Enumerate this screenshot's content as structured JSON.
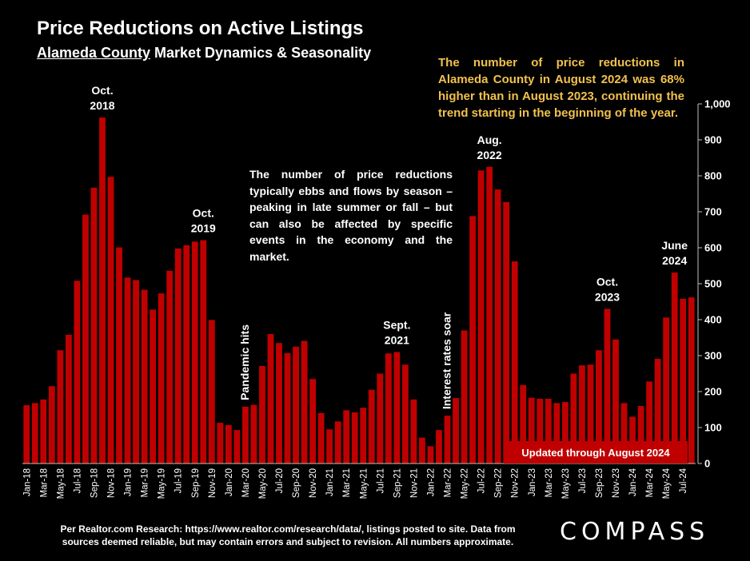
{
  "header": {
    "title": "Price Reductions on Active Listings",
    "subtitle_underlined": "Alameda County",
    "subtitle_rest": " Market Dynamics & Seasonality"
  },
  "notes": {
    "top": "The number of price reductions in Alameda County in August 2024 was 68% higher than in August 2023, continuing the trend starting in the beginning of the year.",
    "middle": "The number of price reductions typically ebbs and flows by season – peaking in late summer or fall – but can also be affected by specific events in the economy and the market."
  },
  "footer": {
    "source": "Per Realtor.com Research:  https://www.realtor.com/research/data/, listings posted to site. Data from sources deemed reliable, but may contain errors and subject to revision. All numbers approximate.",
    "logo": "COMPASS"
  },
  "colors": {
    "background": "#000000",
    "bar": "#c00000",
    "annotation_note": "#f2c14e",
    "text": "#ffffff"
  },
  "chart_data": {
    "type": "bar",
    "ylim": [
      0,
      1000
    ],
    "y_ticks": [
      "0",
      "100",
      "200",
      "300",
      "400",
      "500",
      "600",
      "700",
      "800",
      "900",
      "1,000"
    ],
    "y_axis_side": "right",
    "grid": false,
    "x_tick_labels": [
      "Jan-18",
      "Mar-18",
      "May-18",
      "Jul-18",
      "Sep-18",
      "Nov-18",
      "Jan-19",
      "Mar-19",
      "May-19",
      "Jul-19",
      "Sep-19",
      "Nov-19",
      "Jan-20",
      "Mar-20",
      "May-20",
      "Jul-20",
      "Sep-20",
      "Nov-20",
      "Jan-21",
      "Mar-21",
      "May-21",
      "Jul-21",
      "Sep-21",
      "Nov-21",
      "Jan-22",
      "Mar-22",
      "May-22",
      "Jul-22",
      "Sep-22",
      "Nov-22",
      "Jan-23",
      "Mar-23",
      "May-23",
      "Jul-23",
      "Sep-23",
      "Nov-23",
      "Jan-24",
      "Mar-24",
      "May-24",
      "Jul-24"
    ],
    "categories": [
      "Jan-18",
      "Feb-18",
      "Mar-18",
      "Apr-18",
      "May-18",
      "Jun-18",
      "Jul-18",
      "Aug-18",
      "Sep-18",
      "Oct-18",
      "Nov-18",
      "Dec-18",
      "Jan-19",
      "Feb-19",
      "Mar-19",
      "Apr-19",
      "May-19",
      "Jun-19",
      "Jul-19",
      "Aug-19",
      "Sep-19",
      "Oct-19",
      "Nov-19",
      "Dec-19",
      "Jan-20",
      "Feb-20",
      "Mar-20",
      "Apr-20",
      "May-20",
      "Jun-20",
      "Jul-20",
      "Aug-20",
      "Sep-20",
      "Oct-20",
      "Nov-20",
      "Dec-20",
      "Jan-21",
      "Feb-21",
      "Mar-21",
      "Apr-21",
      "May-21",
      "Jun-21",
      "Jul-21",
      "Aug-21",
      "Sep-21",
      "Oct-21",
      "Nov-21",
      "Dec-21",
      "Jan-22",
      "Feb-22",
      "Mar-22",
      "Apr-22",
      "May-22",
      "Jun-22",
      "Jul-22",
      "Aug-22",
      "Sep-22",
      "Oct-22",
      "Nov-22",
      "Dec-22",
      "Jan-23",
      "Feb-23",
      "Mar-23",
      "Apr-23",
      "May-23",
      "Jun-23",
      "Jul-23",
      "Aug-23",
      "Sep-23",
      "Oct-23",
      "Nov-23",
      "Dec-23",
      "Jan-24",
      "Feb-24",
      "Mar-24",
      "Apr-24",
      "May-24",
      "Jun-24",
      "Jul-24",
      "Aug-24"
    ],
    "values": [
      162,
      168,
      178,
      215,
      315,
      358,
      508,
      692,
      767,
      962,
      797,
      601,
      517,
      510,
      483,
      428,
      473,
      536,
      598,
      607,
      617,
      621,
      399,
      113,
      107,
      93,
      158,
      163,
      271,
      360,
      335,
      307,
      325,
      341,
      235,
      140,
      95,
      117,
      148,
      142,
      155,
      205,
      250,
      306,
      310,
      275,
      178,
      72,
      48,
      93,
      133,
      182,
      370,
      688,
      815,
      825,
      762,
      727,
      562,
      218,
      183,
      180,
      180,
      168,
      171,
      250,
      273,
      275,
      315,
      430,
      345,
      168,
      130,
      160,
      228,
      291,
      406,
      531,
      458,
      462
    ],
    "annotations": [
      {
        "label": "Oct.\n2018",
        "category": "Oct-18"
      },
      {
        "label": "Oct.\n2019",
        "category": "Oct-19"
      },
      {
        "label": "Pandemic hits",
        "category": "Mar-20",
        "rotated": true
      },
      {
        "label": "Sept.\n2021",
        "category": "Sep-21"
      },
      {
        "label": "Interest rates soar",
        "category": "Mar-22",
        "rotated": true
      },
      {
        "label": "Aug.\n2022",
        "category": "Aug-22"
      },
      {
        "label": "Oct.\n2023",
        "category": "Oct-23"
      },
      {
        "label": "June\n2024",
        "category": "Jun-24"
      }
    ],
    "update_banner": "Updated through August 2024"
  }
}
